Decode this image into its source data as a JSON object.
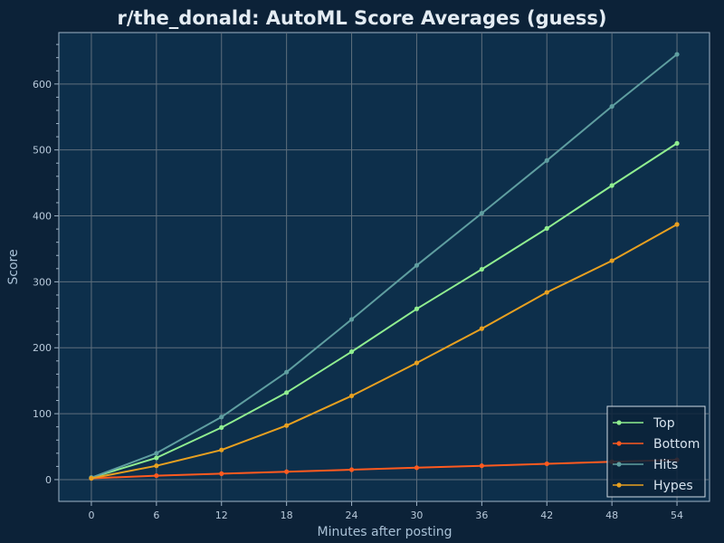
{
  "chart_data": {
    "type": "line",
    "title": "r/the_donald: AutoML Score Averages (guess)",
    "xlabel": "Minutes after posting",
    "ylabel": "Score",
    "x": [
      0,
      6,
      12,
      18,
      24,
      30,
      36,
      42,
      48,
      54
    ],
    "xticks": [
      0,
      6,
      12,
      18,
      24,
      30,
      36,
      42,
      48,
      54
    ],
    "yticks": [
      0,
      100,
      200,
      300,
      400,
      500,
      600
    ],
    "xlim": [
      -3,
      57
    ],
    "ylim": [
      -33,
      678
    ],
    "grid": true,
    "legend_position": "bottom-right",
    "series": [
      {
        "name": "Top",
        "color": "#90ee90",
        "values": [
          3,
          33,
          79,
          132,
          194,
          259,
          319,
          381,
          446,
          510
        ]
      },
      {
        "name": "Bottom",
        "color": "#ff5a1f",
        "values": [
          2,
          6,
          9,
          12,
          15,
          18,
          21,
          24,
          27,
          30
        ]
      },
      {
        "name": "Hits",
        "color": "#5f9ea0",
        "values": [
          3,
          40,
          95,
          163,
          243,
          325,
          404,
          484,
          566,
          645
        ]
      },
      {
        "name": "Hypes",
        "color": "#e8a020",
        "values": [
          2,
          21,
          45,
          82,
          127,
          177,
          229,
          284,
          332,
          387
        ]
      }
    ]
  },
  "colors": {
    "figure_bg": "#0c2238",
    "plot_bg": "#0d2f4b",
    "grid": "#5f6f7d",
    "axis": "#9fb4c7"
  }
}
